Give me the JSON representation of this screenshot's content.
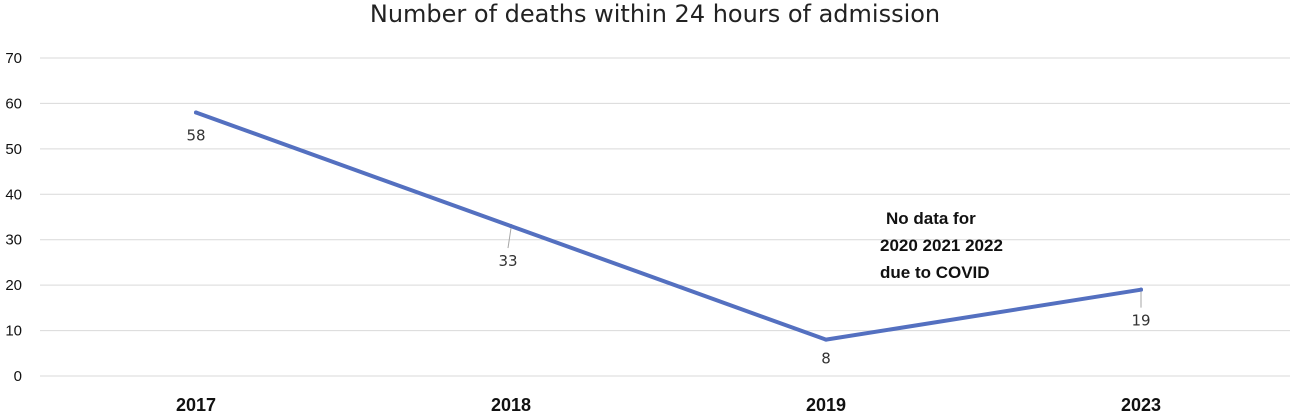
{
  "chart_data": {
    "type": "line",
    "title": "Number of deaths within 24 hours of admission",
    "categories": [
      "2017",
      "2018",
      "2019",
      "2023"
    ],
    "series": [
      {
        "values": [
          58,
          33,
          8,
          19
        ],
        "color": "#5470c0"
      }
    ],
    "data_labels": [
      "58",
      "33",
      "8",
      "19"
    ],
    "ylim": [
      0,
      70
    ],
    "yticks": [
      "0",
      "10",
      "20",
      "30",
      "40",
      "50",
      "60",
      "70"
    ],
    "grid": true,
    "legend": "none",
    "annotation": [
      "No data for",
      "2020  2021 2022",
      "due to COVID"
    ]
  }
}
